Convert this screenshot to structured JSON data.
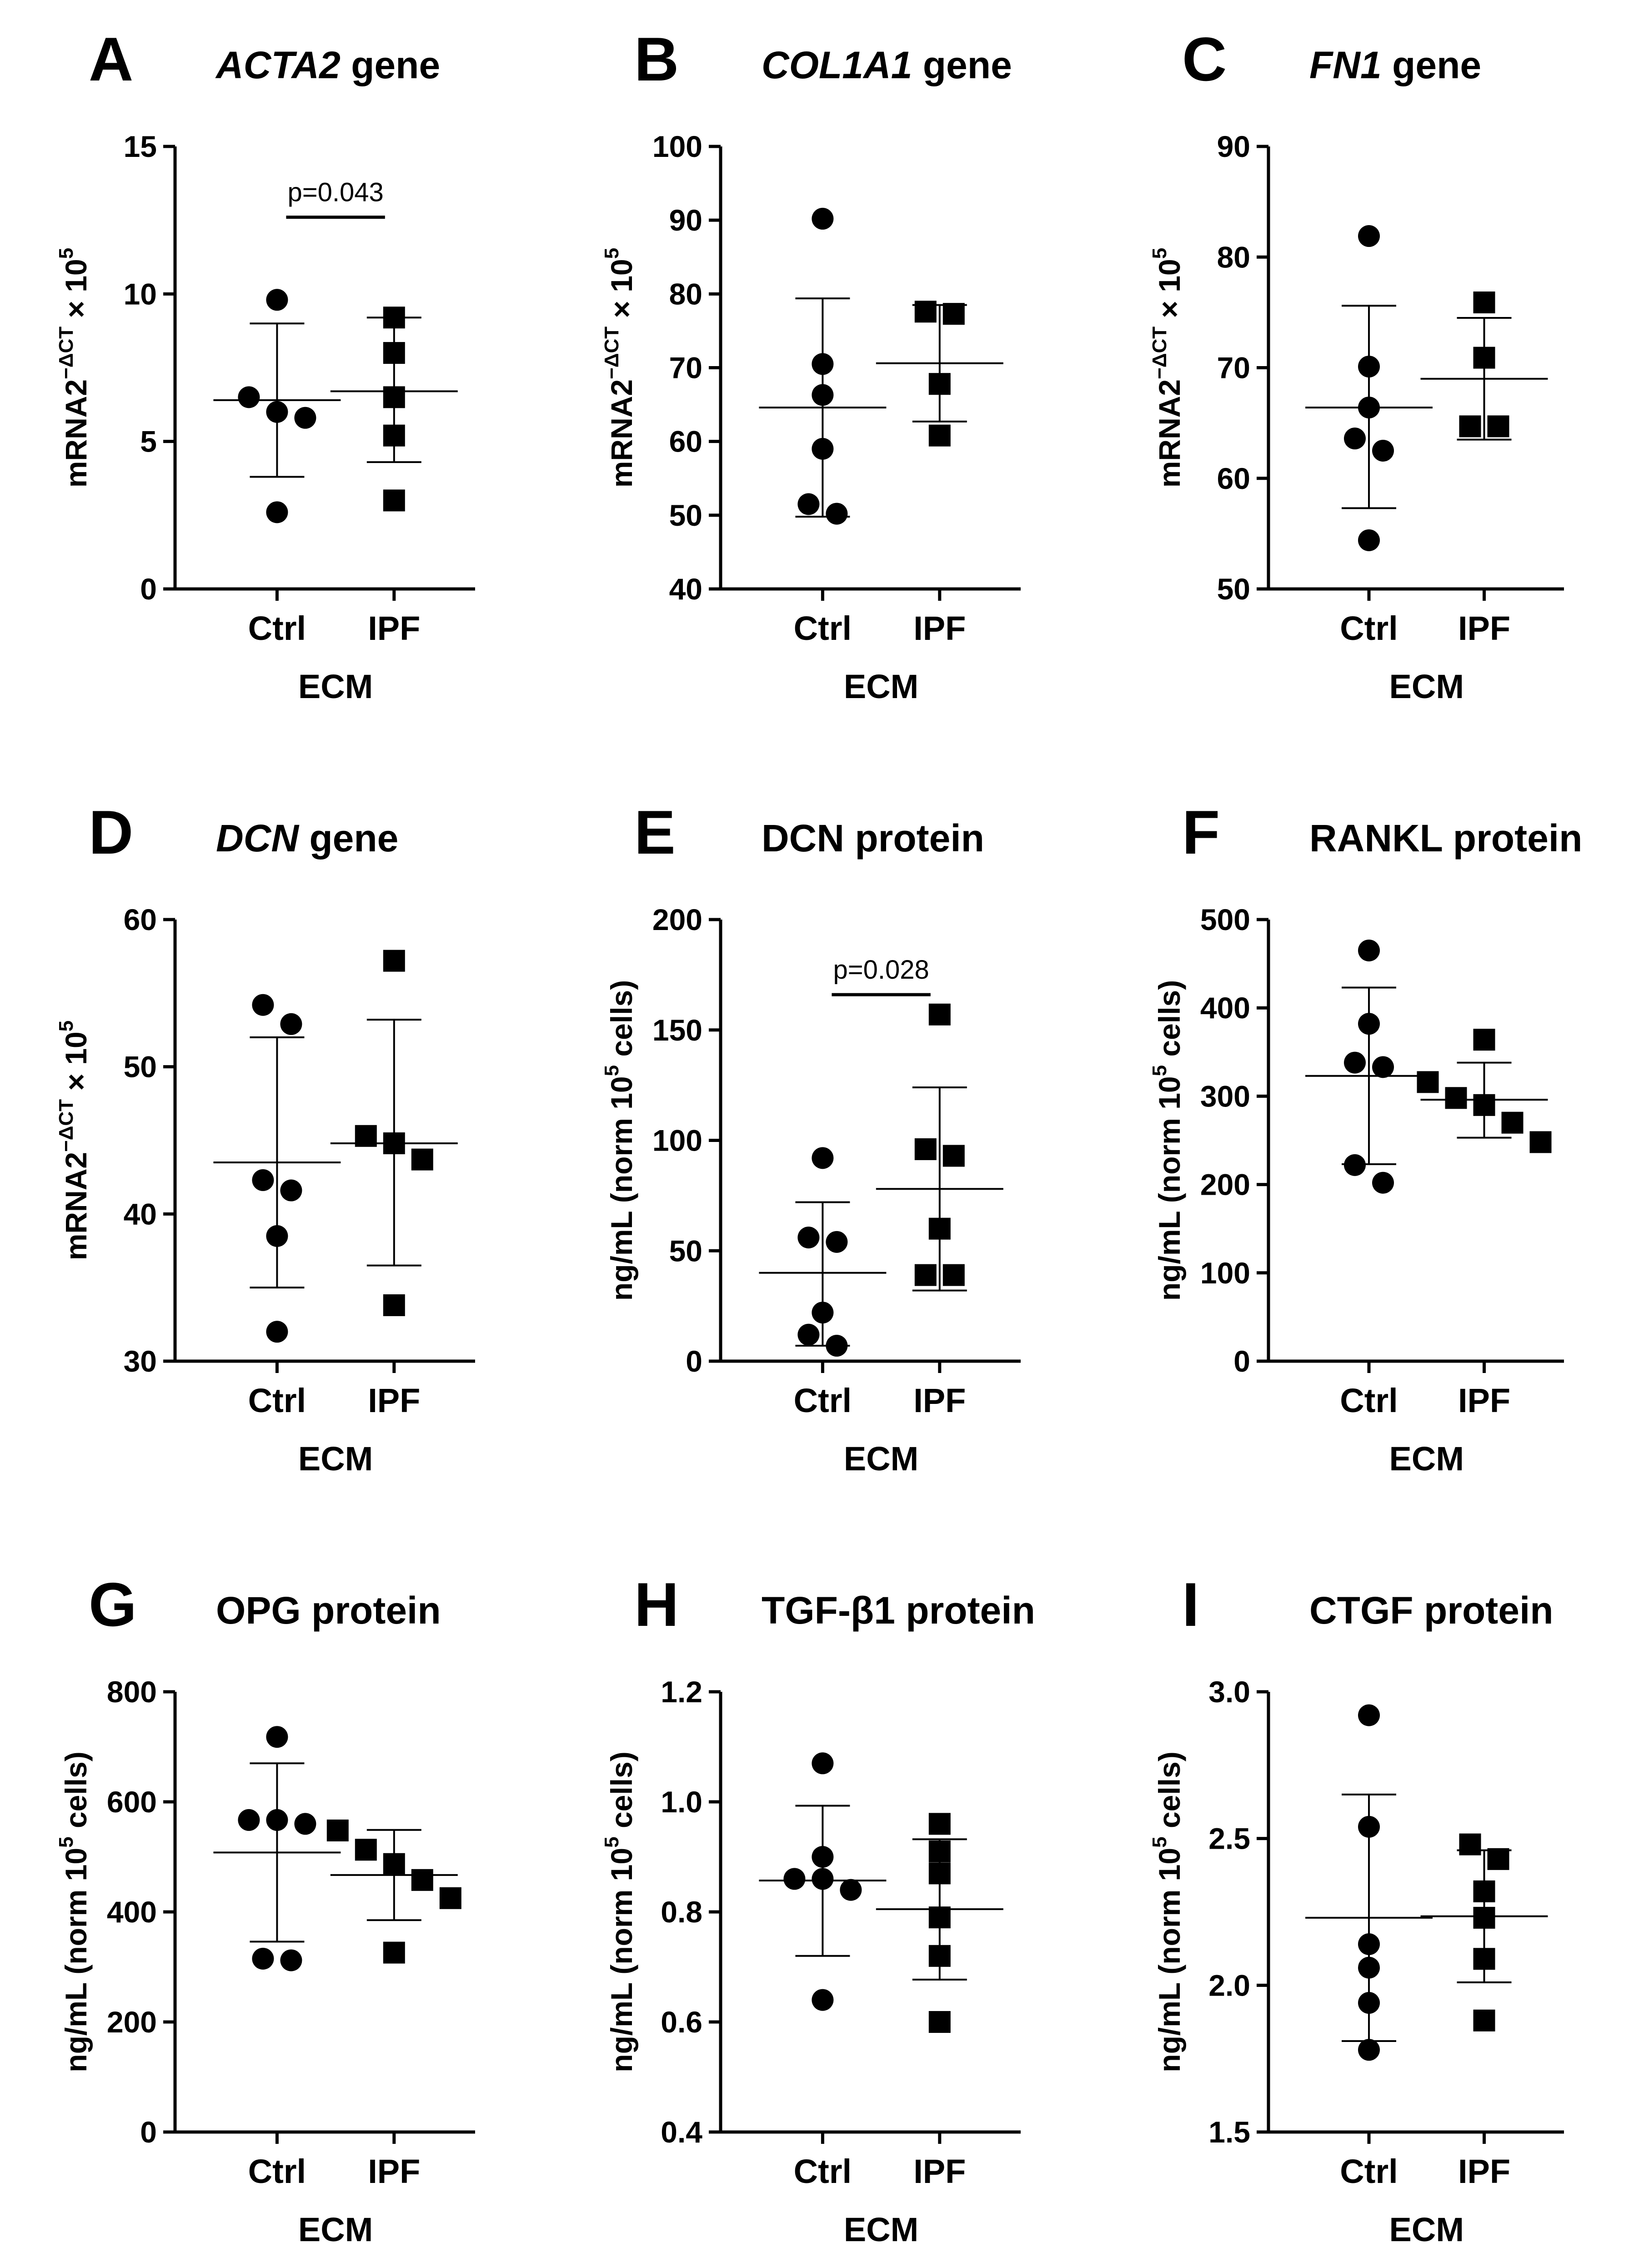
{
  "chart_data": [
    {
      "id": "A",
      "type": "scatter",
      "panel_letter": "A",
      "title_italic": "ACTA2",
      "title_rest": " gene",
      "ylabel": {
        "main": "mRNA2",
        "sup": "−ΔCT",
        "post": " × 10",
        "post_sup": "5"
      },
      "xlabel": "ECM",
      "categories": [
        "Ctrl",
        "IPF"
      ],
      "ylim": [
        0,
        15
      ],
      "yticks": [
        0,
        5,
        10,
        15
      ],
      "ytick_labels": [
        "0",
        "5",
        "10",
        "15"
      ],
      "series": [
        {
          "name": "Ctrl",
          "marker": "circle",
          "values": [
            9.8,
            6.0,
            6.5,
            5.8,
            2.6
          ],
          "mean": 6.4,
          "sd_low": 3.8,
          "sd_high": 9.0
        },
        {
          "name": "IPF",
          "marker": "square",
          "values": [
            9.2,
            8.0,
            6.5,
            5.2,
            3.0
          ],
          "mean": 6.7,
          "sd_low": 4.3,
          "sd_high": 9.2
        }
      ],
      "significance": {
        "text": "p=0.043",
        "y": 12.6
      }
    },
    {
      "id": "B",
      "type": "scatter",
      "panel_letter": "B",
      "title_italic": "COL1A1",
      "title_rest": " gene",
      "ylabel": {
        "main": "mRNA2",
        "sup": "−ΔCT",
        "post": " × 10",
        "post_sup": "5"
      },
      "xlabel": "ECM",
      "categories": [
        "Ctrl",
        "IPF"
      ],
      "ylim": [
        40,
        100
      ],
      "yticks": [
        40,
        50,
        60,
        70,
        80,
        90,
        100
      ],
      "ytick_labels": [
        "40",
        "50",
        "60",
        "70",
        "80",
        "90",
        "100"
      ],
      "series": [
        {
          "name": "Ctrl",
          "marker": "circle",
          "values": [
            90.2,
            70.5,
            66.3,
            59.0,
            51.5,
            50.2
          ],
          "mean": 64.6,
          "sd_low": 49.8,
          "sd_high": 79.4
        },
        {
          "name": "IPF",
          "marker": "square",
          "values": [
            77.6,
            77.3,
            67.8,
            60.8
          ],
          "mean": 70.6,
          "sd_low": 62.7,
          "sd_high": 78.5
        }
      ]
    },
    {
      "id": "C",
      "type": "scatter",
      "panel_letter": "C",
      "title_italic": "FN1",
      "title_rest": " gene",
      "ylabel": {
        "main": "mRNA2",
        "sup": "−ΔCT",
        "post": " × 10",
        "post_sup": "5"
      },
      "xlabel": "ECM",
      "categories": [
        "Ctrl",
        "IPF"
      ],
      "ylim": [
        50,
        90
      ],
      "yticks": [
        50,
        60,
        70,
        80,
        90
      ],
      "ytick_labels": [
        "50",
        "60",
        "70",
        "80",
        "90"
      ],
      "series": [
        {
          "name": "Ctrl",
          "marker": "circle",
          "values": [
            81.9,
            70.1,
            66.4,
            63.6,
            62.5,
            54.4
          ],
          "mean": 66.4,
          "sd_low": 57.3,
          "sd_high": 75.6
        },
        {
          "name": "IPF",
          "marker": "square",
          "values": [
            75.9,
            70.9,
            64.7,
            64.7
          ],
          "mean": 69.0,
          "sd_low": 63.5,
          "sd_high": 74.5
        }
      ]
    },
    {
      "id": "D",
      "type": "scatter",
      "panel_letter": "D",
      "title_italic": "DCN",
      "title_rest": " gene",
      "ylabel": {
        "main": "mRNA2",
        "sup": "−ΔCT",
        "post": " × 10",
        "post_sup": "5"
      },
      "xlabel": "ECM",
      "categories": [
        "Ctrl",
        "IPF"
      ],
      "ylim": [
        30,
        60
      ],
      "yticks": [
        30,
        40,
        50,
        60
      ],
      "ytick_labels": [
        "30",
        "40",
        "50",
        "60"
      ],
      "series": [
        {
          "name": "Ctrl",
          "marker": "circle",
          "values": [
            54.2,
            52.9,
            42.3,
            41.6,
            38.5,
            32.0
          ],
          "mean": 43.5,
          "sd_low": 35.0,
          "sd_high": 52.0
        },
        {
          "name": "IPF",
          "marker": "square",
          "values": [
            57.2,
            45.3,
            44.8,
            43.7,
            33.8
          ],
          "mean": 44.8,
          "sd_low": 36.5,
          "sd_high": 53.2
        }
      ]
    },
    {
      "id": "E",
      "type": "scatter",
      "panel_letter": "E",
      "title_italic": "",
      "title_rest": "DCN protein",
      "ylabel": {
        "main": "ng/mL (norm 10",
        "sup": "5",
        "post": " cells)",
        "post_sup": ""
      },
      "xlabel": "ECM",
      "categories": [
        "Ctrl",
        "IPF"
      ],
      "ylim": [
        0,
        200
      ],
      "yticks": [
        0,
        50,
        100,
        150,
        200
      ],
      "ytick_labels": [
        "0",
        "50",
        "100",
        "150",
        "200"
      ],
      "series": [
        {
          "name": "Ctrl",
          "marker": "circle",
          "values": [
            92,
            56,
            54,
            22,
            12,
            7
          ],
          "mean": 40,
          "sd_low": 7,
          "sd_high": 72
        },
        {
          "name": "IPF",
          "marker": "square",
          "values": [
            157,
            96,
            93,
            60,
            39,
            39
          ],
          "mean": 78,
          "sd_low": 32,
          "sd_high": 124
        }
      ],
      "significance": {
        "text": "p=0.028",
        "y": 166
      }
    },
    {
      "id": "F",
      "type": "scatter",
      "panel_letter": "F",
      "title_italic": "",
      "title_rest": "RANKL protein",
      "ylabel": {
        "main": "ng/mL (norm 10",
        "sup": "5",
        "post": " cells)",
        "post_sup": ""
      },
      "xlabel": "ECM",
      "categories": [
        "Ctrl",
        "IPF"
      ],
      "ylim": [
        0,
        500
      ],
      "yticks": [
        0,
        100,
        200,
        300,
        400,
        500
      ],
      "ytick_labels": [
        "0",
        "100",
        "200",
        "300",
        "400",
        "500"
      ],
      "series": [
        {
          "name": "Ctrl",
          "marker": "circle",
          "values": [
            465,
            382,
            338,
            333,
            222,
            202
          ],
          "mean": 323,
          "sd_low": 223,
          "sd_high": 423
        },
        {
          "name": "IPF",
          "marker": "square",
          "values": [
            364,
            316,
            298,
            290,
            270,
            248
          ],
          "mean": 296,
          "sd_low": 253,
          "sd_high": 338
        }
      ]
    },
    {
      "id": "G",
      "type": "scatter",
      "panel_letter": "G",
      "title_italic": "",
      "title_rest": "OPG protein",
      "ylabel": {
        "main": "ng/mL (norm 10",
        "sup": "5",
        "post": " cells)",
        "post_sup": ""
      },
      "xlabel": "ECM",
      "categories": [
        "Ctrl",
        "IPF"
      ],
      "ylim": [
        0,
        800
      ],
      "yticks": [
        0,
        200,
        400,
        600,
        800
      ],
      "ytick_labels": [
        "0",
        "200",
        "400",
        "600",
        "800"
      ],
      "series": [
        {
          "name": "Ctrl",
          "marker": "circle",
          "values": [
            718,
            567,
            567,
            560,
            315,
            312
          ],
          "mean": 508,
          "sd_low": 346,
          "sd_high": 670
        },
        {
          "name": "IPF",
          "marker": "square",
          "values": [
            548,
            513,
            487,
            458,
            425,
            326
          ],
          "mean": 467,
          "sd_low": 385,
          "sd_high": 549
        }
      ]
    },
    {
      "id": "H",
      "type": "scatter",
      "panel_letter": "H",
      "title_italic": "",
      "title_rest": "TGF-β1 protein",
      "ylabel": {
        "main": "ng/mL (norm 10",
        "sup": "5",
        "post": " cells)",
        "post_sup": ""
      },
      "xlabel": "ECM",
      "categories": [
        "Ctrl",
        "IPF"
      ],
      "ylim": [
        0.4,
        1.2
      ],
      "yticks": [
        0.4,
        0.6,
        0.8,
        1.0,
        1.2
      ],
      "ytick_labels": [
        "0.4",
        "0.6",
        "0.8",
        "1.0",
        "1.2"
      ],
      "series": [
        {
          "name": "Ctrl",
          "marker": "circle",
          "values": [
            1.07,
            0.9,
            0.86,
            0.86,
            0.84,
            0.64
          ],
          "mean": 0.857,
          "sd_low": 0.72,
          "sd_high": 0.993
        },
        {
          "name": "IPF",
          "marker": "square",
          "values": [
            0.96,
            0.91,
            0.87,
            0.79,
            0.72,
            0.6
          ],
          "mean": 0.805,
          "sd_low": 0.677,
          "sd_high": 0.932
        }
      ]
    },
    {
      "id": "I",
      "type": "scatter",
      "panel_letter": "I",
      "title_italic": "",
      "title_rest": "CTGF protein",
      "ylabel": {
        "main": "ng/mL (norm 10",
        "sup": "5",
        "post": " cells)",
        "post_sup": ""
      },
      "xlabel": "ECM",
      "categories": [
        "Ctrl",
        "IPF"
      ],
      "ylim": [
        1.5,
        3.0
      ],
      "yticks": [
        1.5,
        2.0,
        2.5,
        3.0
      ],
      "ytick_labels": [
        "1.5",
        "2.0",
        "2.5",
        "3.0"
      ],
      "series": [
        {
          "name": "Ctrl",
          "marker": "circle",
          "values": [
            2.92,
            2.54,
            2.14,
            2.06,
            1.94,
            1.78
          ],
          "mean": 2.23,
          "sd_low": 1.81,
          "sd_high": 2.65
        },
        {
          "name": "IPF",
          "marker": "square",
          "values": [
            2.48,
            2.43,
            2.32,
            2.23,
            2.09,
            1.88
          ],
          "mean": 2.235,
          "sd_low": 2.01,
          "sd_high": 2.46
        }
      ]
    }
  ]
}
